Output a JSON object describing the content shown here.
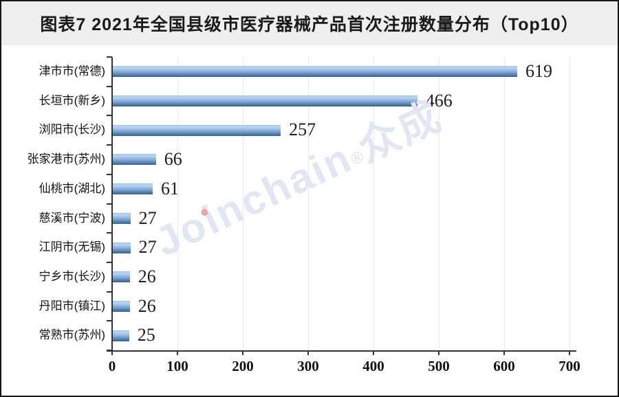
{
  "header": {
    "title": "图表7 2021年全国县级市医疗器械产品首次注册数量分布（Top10）"
  },
  "watermark": {
    "brand": "Joinchain",
    "reg": "®",
    "suffix": "众成"
  },
  "chart_data": {
    "type": "bar",
    "orientation": "horizontal",
    "title": "图表7 2021年全国县级市医疗器械产品首次注册数量分布（Top10）",
    "categories": [
      "津市市(常德)",
      "长垣市(新乡)",
      "浏阳市(长沙)",
      "张家港市(苏州)",
      "仙桃市(湖北)",
      "慈溪市(宁波)",
      "江阴市(无锡)",
      "宁乡市(长沙)",
      "丹阳市(镇江)",
      "常熟市(苏州)"
    ],
    "values": [
      619,
      466,
      257,
      66,
      61,
      27,
      27,
      26,
      26,
      25
    ],
    "xlabel": "",
    "ylabel": "",
    "xlim": [
      0,
      700
    ],
    "xticks": [
      0,
      100,
      200,
      300,
      400,
      500,
      600,
      700
    ],
    "grid": "vertical",
    "legend": "none",
    "data_labels": true
  },
  "colors": {
    "title_band_bg": "#eeeeee",
    "bar_top": "#bad7f0",
    "bar_bottom": "#2f5e90",
    "axis": "#333333",
    "gridline": "#e8e8e8",
    "text": "#1a1a1a",
    "watermark": "#e2e6f2",
    "watermark_dot": "#e8a6a2"
  }
}
